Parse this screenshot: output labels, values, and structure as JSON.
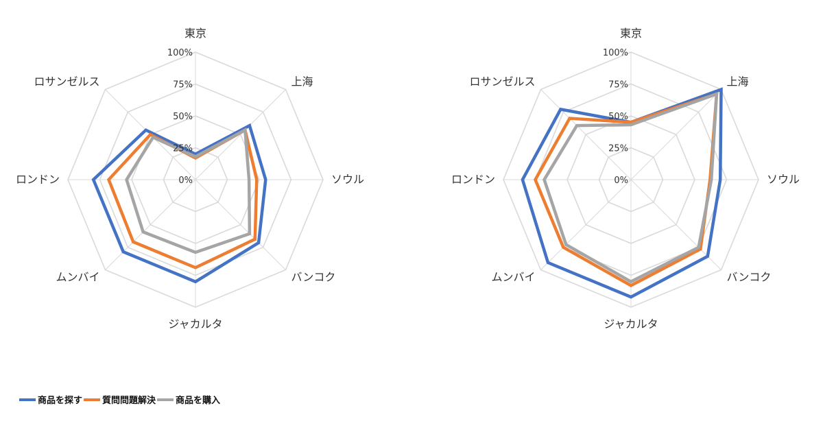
{
  "chart_data": [
    {
      "type": "radar",
      "categories": [
        "東京",
        "上海",
        "ソウル",
        "バンコク",
        "ジャカルタ",
        "ムンバイ",
        "ロンドン",
        "ロサンゼルス"
      ],
      "tick_labels": [
        "0%",
        "25%",
        "50%",
        "75%",
        "100%"
      ],
      "range": [
        0,
        100
      ],
      "series": [
        {
          "name": "商品を探す",
          "color": "#4472C4",
          "values": [
            20,
            60,
            55,
            70,
            80,
            80,
            80,
            55
          ]
        },
        {
          "name": "質問問題解決",
          "color": "#ED7D31",
          "values": [
            17,
            55,
            48,
            66,
            69,
            69,
            68,
            50
          ]
        },
        {
          "name": "商品を購入",
          "color": "#A5A5A5",
          "values": [
            18,
            55,
            42,
            60,
            57,
            58,
            54,
            47
          ]
        }
      ]
    },
    {
      "type": "radar",
      "categories": [
        "東京",
        "上海",
        "ソウル",
        "バンコク",
        "ジャカルタ",
        "ムンバイ",
        "ロンドン",
        "ロサンゼルス"
      ],
      "tick_labels": [
        "0%",
        "25%",
        "50%",
        "75%",
        "100%"
      ],
      "range": [
        0,
        100
      ],
      "series": [
        {
          "name": "商品を探す",
          "color": "#4472C4",
          "values": [
            45,
            100,
            70,
            85,
            92,
            92,
            85,
            78
          ]
        },
        {
          "name": "質問問題解決",
          "color": "#ED7D31",
          "values": [
            45,
            95,
            62,
            77,
            83,
            75,
            75,
            68
          ]
        },
        {
          "name": "商品を購入",
          "color": "#A5A5A5",
          "values": [
            43,
            95,
            63,
            75,
            80,
            72,
            68,
            60
          ]
        }
      ]
    }
  ],
  "legend": [
    {
      "label": "商品を探す",
      "color": "#4472C4"
    },
    {
      "label": "質問問題解決",
      "color": "#ED7D31"
    },
    {
      "label": "商品を購入",
      "color": "#A5A5A5"
    }
  ]
}
